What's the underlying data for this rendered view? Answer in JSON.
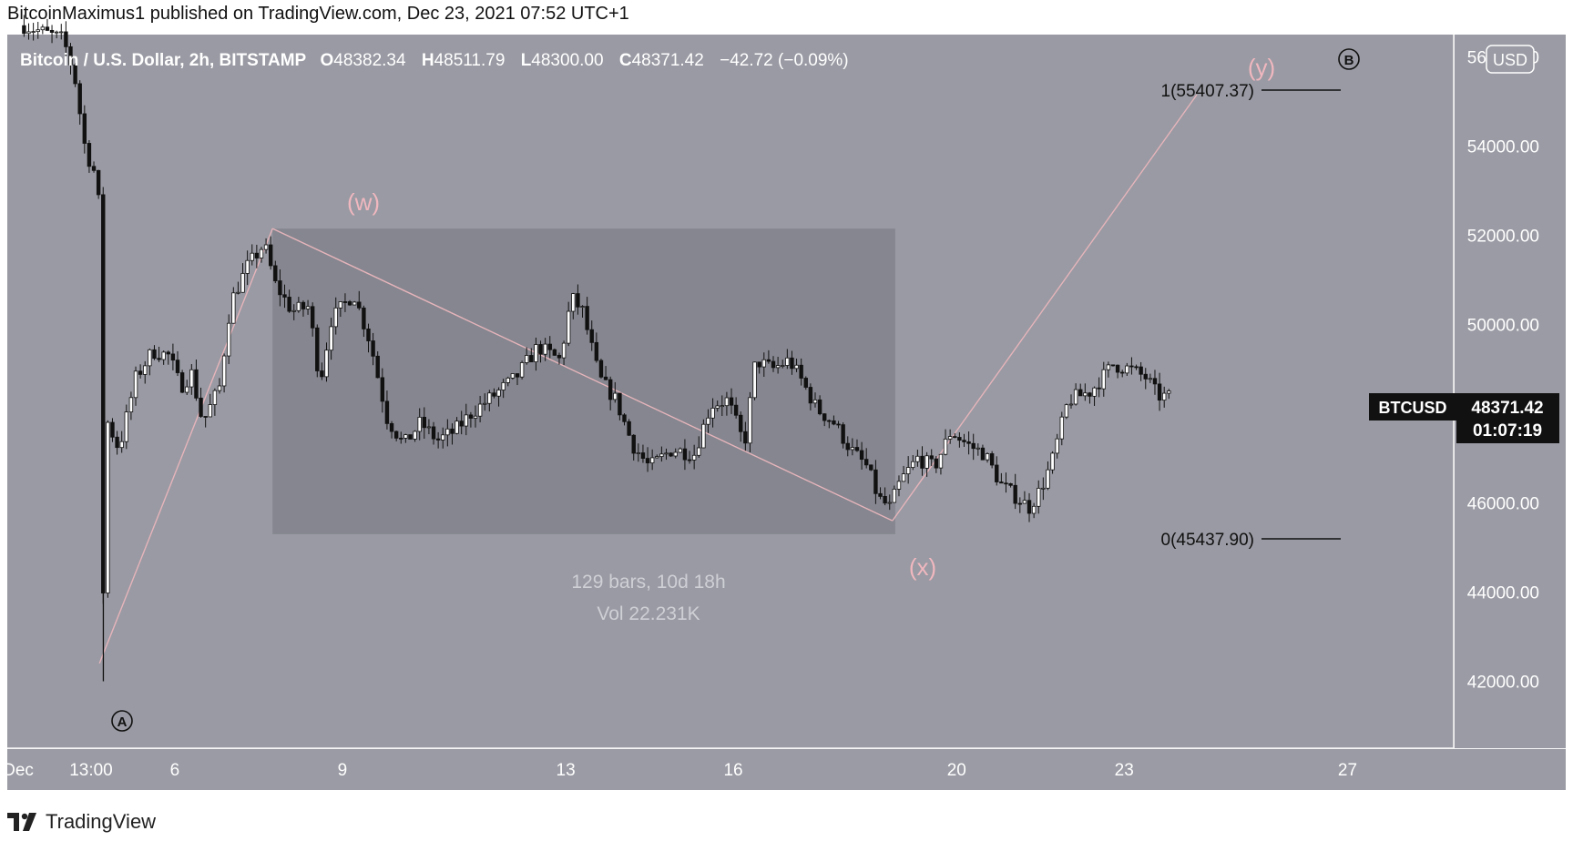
{
  "publisher": {
    "line": "BitcoinMaximus1 published on TradingView.com, Dec 23, 2021 07:52 UTC+1"
  },
  "header": {
    "symbol": "Bitcoin / U.S. Dollar, 2h, BITSTAMP",
    "o_label": "O",
    "o_value": "48382.34",
    "h_label": "H",
    "h_value": "48511.79",
    "l_label": "L",
    "l_value": "48300.00",
    "c_label": "C",
    "c_value": "48371.42",
    "change": "−42.72 (−0.09%)"
  },
  "currency_button": "USD",
  "price_label": {
    "ticker": "BTCUSD",
    "price": "48371.42",
    "countdown": "01:07:19"
  },
  "fib": {
    "top": "1(55407.37)",
    "bottom": "0(45437.90)"
  },
  "range_box": {
    "bars": "129 bars, 10d 18h",
    "vol": "Vol 22.231K"
  },
  "waves": {
    "w": "(w)",
    "x": "(x)",
    "y": "(y)",
    "A": "A",
    "B": "B"
  },
  "footer": {
    "brand": "TradingView"
  },
  "colors": {
    "chart_bg": "#999aa3",
    "box": "#85868f",
    "wave_label": "#f0b7bf",
    "projection_line": "#e6b4bb",
    "candle": "#111111",
    "panel_bg": "#9a9ba4"
  },
  "chart_data": {
    "type": "candlestick",
    "ylim": [
      40500,
      56500
    ],
    "y_ticks": [
      "42000.00",
      "44000.00",
      "46000.00",
      "48000.00",
      "50000.00",
      "52000.00",
      "54000.00",
      "56000.00"
    ],
    "y_tick_values": [
      42000,
      44000,
      46000,
      48000,
      50000,
      52000,
      54000,
      56000
    ],
    "x_ticks": [
      "Dec",
      "13:00",
      "6",
      "9",
      "13",
      "16",
      "20",
      "23",
      "27"
    ],
    "x_tick_days": [
      3,
      4.5,
      6,
      9,
      13,
      16,
      20,
      23,
      27
    ],
    "xlim": [
      3,
      28.9
    ],
    "price_path": [
      [
        3.3,
        56700
      ],
      [
        4.0,
        56400
      ],
      [
        4.2,
        55600
      ],
      [
        4.4,
        53900
      ],
      [
        4.6,
        53300
      ],
      [
        4.7,
        51700
      ],
      [
        4.72,
        42500
      ],
      [
        4.8,
        47800
      ],
      [
        5.0,
        47200
      ],
      [
        5.3,
        48800
      ],
      [
        5.6,
        49400
      ],
      [
        5.9,
        49300
      ],
      [
        6.1,
        48600
      ],
      [
        6.3,
        48900
      ],
      [
        6.5,
        47800
      ],
      [
        6.8,
        48600
      ],
      [
        7.0,
        50500
      ],
      [
        7.3,
        51300
      ],
      [
        7.6,
        51800
      ],
      [
        7.8,
        50900
      ],
      [
        8.1,
        50300
      ],
      [
        8.4,
        50400
      ],
      [
        8.6,
        48700
      ],
      [
        8.8,
        50100
      ],
      [
        9.2,
        50700
      ],
      [
        9.5,
        49600
      ],
      [
        9.8,
        47900
      ],
      [
        10.1,
        47300
      ],
      [
        10.4,
        47800
      ],
      [
        10.7,
        47400
      ],
      [
        11.0,
        47600
      ],
      [
        11.3,
        48000
      ],
      [
        11.7,
        48400
      ],
      [
        12.1,
        48800
      ],
      [
        12.5,
        49500
      ],
      [
        12.9,
        49200
      ],
      [
        13.1,
        50600
      ],
      [
        13.3,
        50300
      ],
      [
        13.6,
        48800
      ],
      [
        13.9,
        48300
      ],
      [
        14.2,
        47300
      ],
      [
        14.5,
        46800
      ],
      [
        14.9,
        47200
      ],
      [
        15.3,
        47100
      ],
      [
        15.6,
        48200
      ],
      [
        15.9,
        48300
      ],
      [
        16.2,
        47300
      ],
      [
        16.4,
        49200
      ],
      [
        16.7,
        49000
      ],
      [
        17.0,
        49200
      ],
      [
        17.2,
        48800
      ],
      [
        17.5,
        48100
      ],
      [
        17.8,
        47800
      ],
      [
        18.1,
        47200
      ],
      [
        18.4,
        46800
      ],
      [
        18.6,
        46100
      ],
      [
        18.8,
        45900
      ],
      [
        19.0,
        46500
      ],
      [
        19.3,
        47000
      ],
      [
        19.6,
        46800
      ],
      [
        19.9,
        47600
      ],
      [
        20.2,
        47300
      ],
      [
        20.5,
        47100
      ],
      [
        20.8,
        46400
      ],
      [
        21.1,
        46100
      ],
      [
        21.3,
        45900
      ],
      [
        21.5,
        46300
      ],
      [
        21.7,
        46900
      ],
      [
        22.0,
        48300
      ],
      [
        22.4,
        48500
      ],
      [
        22.8,
        49100
      ],
      [
        23.1,
        49000
      ],
      [
        23.4,
        48800
      ],
      [
        23.6,
        48400
      ],
      [
        23.8,
        48371
      ]
    ]
  }
}
